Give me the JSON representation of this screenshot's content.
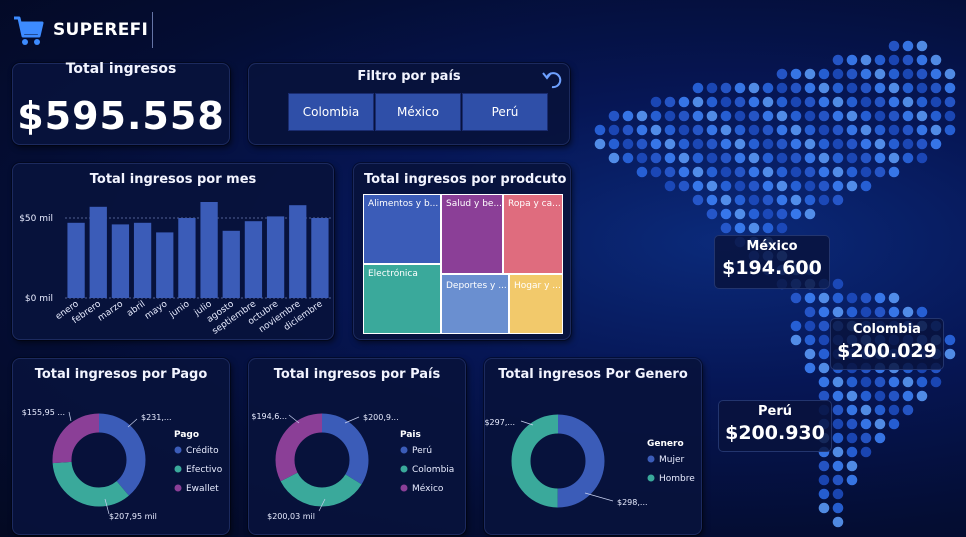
{
  "brand": {
    "name": "SUPEREFI",
    "logo_icon": "shopping-cart-icon"
  },
  "kpi": {
    "title": "Total ingresos",
    "value": "$595.558"
  },
  "filter": {
    "title": "Filtro por país",
    "reset_icon": "undo-arrow-icon",
    "options": [
      "Colombia",
      "México",
      "Perú"
    ]
  },
  "monthly": {
    "title": "Total ingresos por mes",
    "chart_data": {
      "type": "bar",
      "title": "Total ingresos por mes",
      "categories": [
        "enero",
        "febrero",
        "marzo",
        "abril",
        "mayo",
        "junio",
        "julio",
        "agosto",
        "septiembre",
        "octubre",
        "noviembre",
        "diciembre"
      ],
      "values": [
        47,
        57,
        46,
        47,
        41,
        50,
        60,
        42,
        48,
        51,
        58,
        50
      ],
      "y_ticks": [
        "$50 mil",
        "$0 mil"
      ],
      "ylim": [
        0,
        65
      ],
      "color": "#3b5cb8",
      "grid": true
    }
  },
  "treemap": {
    "title": "Total ingresos por prodcuto",
    "cells": [
      {
        "label": "Alimentos y b...",
        "color": "#3b5cb8"
      },
      {
        "label": "Electrónica",
        "color": "#3aa99b"
      },
      {
        "label": "Salud y be...",
        "color": "#8b3f97"
      },
      {
        "label": "Deportes y ...",
        "color": "#6a8fd0"
      },
      {
        "label": "Ropa y ca...",
        "color": "#df6c7e"
      },
      {
        "label": "Hogar y ...",
        "color": "#f2c96b"
      }
    ]
  },
  "pago": {
    "title": "Total ingresos por Pago",
    "chart_data": {
      "type": "pie",
      "title": "Total ingresos por Pago",
      "legend_title": "Pago",
      "legend_position": "right",
      "labels": [
        "Crédito",
        "Efectivo",
        "Ewallet"
      ],
      "values": [
        231.0,
        207.95,
        155.95
      ],
      "colors": [
        "#3b5cb8",
        "#3aa99b",
        "#8b3f97"
      ],
      "data_labels": [
        "$231,...",
        "$207,95 mil",
        "$155,95 ..."
      ]
    }
  },
  "pais": {
    "title": "Total ingresos por País",
    "chart_data": {
      "type": "pie",
      "title": "Total ingresos por País",
      "legend_title": "Pais",
      "legend_position": "right",
      "labels": [
        "Perú",
        "Colombia",
        "México"
      ],
      "values": [
        200.93,
        200.03,
        194.6
      ],
      "colors": [
        "#3b5cb8",
        "#3aa99b",
        "#8b3f97"
      ],
      "data_labels": [
        "$200,9...",
        "$200,03 mil",
        "$194,6..."
      ]
    }
  },
  "genero": {
    "title": "Total ingresos Por Genero",
    "chart_data": {
      "type": "pie",
      "title": "Total ingresos Por Genero",
      "legend_title": "Genero",
      "legend_position": "right",
      "labels": [
        "Mujer",
        "Hombre"
      ],
      "values": [
        298,
        297
      ],
      "colors": [
        "#3b5cb8",
        "#3aa99b"
      ],
      "data_labels": [
        "$298,...",
        "$297,..."
      ]
    }
  },
  "map": {
    "mexico": {
      "country": "México",
      "amount": "$194.600"
    },
    "colombia": {
      "country": "Colombia",
      "amount": "$200.029"
    },
    "peru": {
      "country": "Perú",
      "amount": "$200.930"
    }
  }
}
